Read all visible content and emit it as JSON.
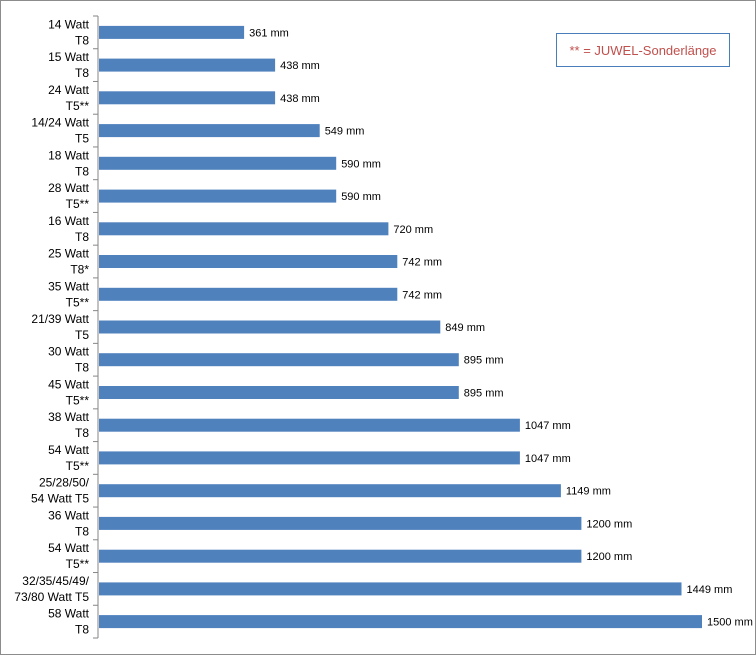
{
  "chart_data": {
    "type": "bar",
    "orientation": "horizontal",
    "categories": [
      [
        "14 Watt",
        "T8"
      ],
      [
        "15 Watt",
        "T8"
      ],
      [
        "24 Watt",
        "T5**"
      ],
      [
        "14/24 Watt",
        "T5"
      ],
      [
        "18 Watt",
        "T8"
      ],
      [
        "28 Watt",
        "T5**"
      ],
      [
        "16 Watt",
        "T8"
      ],
      [
        "25 Watt",
        "T8*"
      ],
      [
        "35 Watt",
        "T5**"
      ],
      [
        "21/39 Watt",
        "T5"
      ],
      [
        "30 Watt",
        "T8"
      ],
      [
        "45 Watt",
        "T5**"
      ],
      [
        "38 Watt",
        "T8"
      ],
      [
        "54 Watt",
        "T5**"
      ],
      [
        "25/28/50/",
        "54 Watt T5"
      ],
      [
        "36 Watt",
        "T8"
      ],
      [
        "54 Watt",
        "T5**"
      ],
      [
        "32/35/45/49/",
        "73/80 Watt T5"
      ],
      [
        "58 Watt",
        "T8"
      ]
    ],
    "values": [
      361,
      438,
      438,
      549,
      590,
      590,
      720,
      742,
      742,
      849,
      895,
      895,
      1047,
      1047,
      1149,
      1200,
      1200,
      1449,
      1500
    ],
    "data_labels": [
      "361 mm",
      "438 mm",
      "438 mm",
      "549 mm",
      "590 mm",
      "590 mm",
      "720 mm",
      "742 mm",
      "742 mm",
      "849 mm",
      "895 mm",
      "895 mm",
      "1047 mm",
      "1047 mm",
      "1149 mm",
      "1200 mm",
      "1200 mm",
      "1449 mm",
      "1500 mm"
    ],
    "xlim": [
      0,
      1500
    ],
    "title": "",
    "xlabel": "",
    "ylabel": "",
    "grid": false,
    "bar_color": "#4f81bd",
    "legend": {
      "text": "** = JUWEL-Sonderlänge",
      "text_color": "#c0504d",
      "border_color": "#4a7ebb",
      "placement": "top-right"
    }
  }
}
